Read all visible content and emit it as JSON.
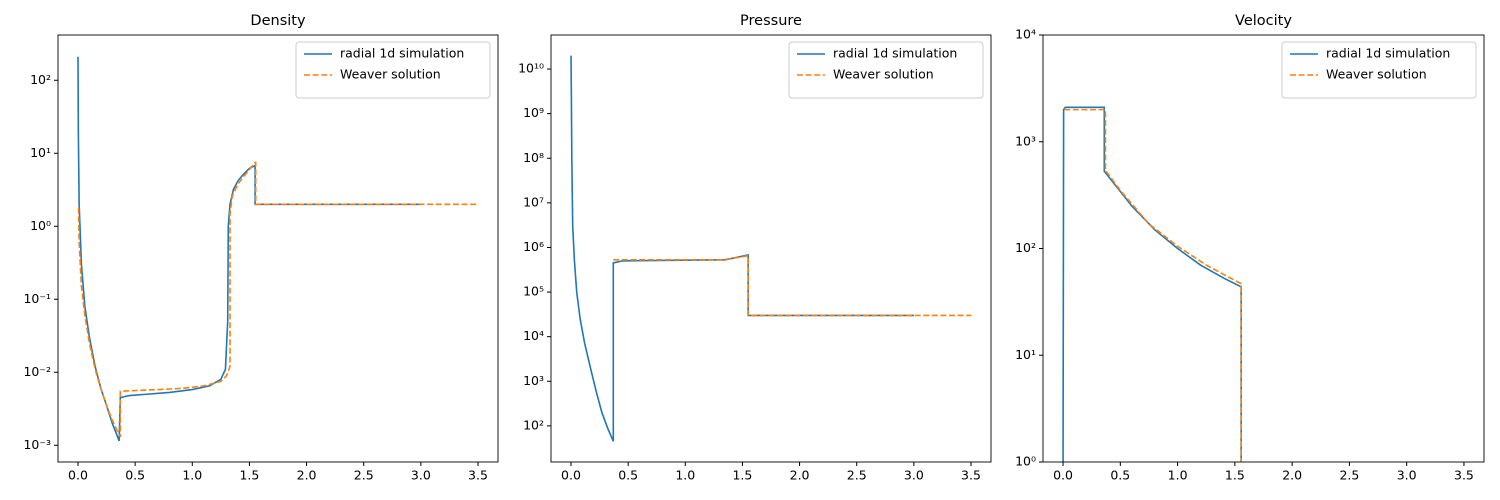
{
  "chart_data": [
    {
      "type": "line",
      "title": "Density",
      "yscale": "log",
      "legend": "upper right",
      "xlim": [
        -0.175,
        3.675
      ],
      "xticks": [
        {
          "value": 0,
          "label": "0.0"
        },
        0.5,
        {
          "value": 1,
          "label": "1.0"
        },
        1.5,
        {
          "value": 2,
          "label": "2.0"
        },
        2.5,
        {
          "value": 3,
          "label": "3.0"
        },
        3.5
      ],
      "ylim": [
        0.00059,
        417
      ],
      "yticks": [
        {
          "value": 0.001,
          "label": "10⁻³"
        },
        {
          "value": 0.01,
          "label": "10⁻²"
        },
        {
          "value": 0.1,
          "label": "10⁻¹"
        },
        {
          "value": 1,
          "label": "10⁰"
        },
        {
          "value": 10,
          "label": "10¹"
        },
        {
          "value": 100,
          "label": "10²"
        }
      ],
      "series": [
        {
          "name": "radial 1d simulation",
          "color": "#1f77b4",
          "linestyle": "solid",
          "x": [
            0,
            0.003,
            0.01,
            0.03,
            0.06,
            0.1,
            0.15,
            0.2,
            0.25,
            0.3,
            0.36,
            0.37,
            0.45,
            0.6,
            0.8,
            1.0,
            1.15,
            1.25,
            1.29,
            1.31,
            1.315,
            1.33,
            1.36,
            1.4,
            1.45,
            1.5,
            1.55,
            1.55,
            3.0
          ],
          "values": [
            210,
            20,
            2,
            0.3,
            0.08,
            0.03,
            0.012,
            0.006,
            0.0035,
            0.002,
            0.00115,
            0.0045,
            0.0048,
            0.005,
            0.0053,
            0.0058,
            0.0065,
            0.008,
            0.011,
            0.05,
            1.0,
            2.0,
            3.2,
            4.2,
            5.2,
            6.2,
            6.8,
            2.0,
            2.0
          ]
        },
        {
          "name": "Weaver solution",
          "color": "#ff7f0e",
          "linestyle": "dashed",
          "x": [
            0.005,
            0.01,
            0.03,
            0.06,
            0.1,
            0.15,
            0.2,
            0.25,
            0.3,
            0.35,
            0.37,
            0.37,
            0.6,
            0.9,
            1.1,
            1.25,
            1.3,
            1.33,
            1.33,
            1.35,
            1.4,
            1.45,
            1.5,
            1.55,
            1.555,
            1.555,
            3.5
          ],
          "values": [
            1.8,
            0.6,
            0.15,
            0.06,
            0.025,
            0.011,
            0.006,
            0.0035,
            0.0022,
            0.0015,
            0.0013,
            0.0055,
            0.0057,
            0.006,
            0.0065,
            0.0075,
            0.009,
            0.012,
            1.5,
            2.6,
            3.8,
            4.8,
            6.0,
            7.5,
            7.5,
            2.0,
            2.0
          ]
        }
      ]
    },
    {
      "type": "line",
      "title": "Pressure",
      "yscale": "log",
      "legend": "upper right",
      "xlim": [
        -0.175,
        3.675
      ],
      "xticks": [
        {
          "value": 0,
          "label": "0.0"
        },
        0.5,
        {
          "value": 1,
          "label": "1.0"
        },
        1.5,
        {
          "value": 2,
          "label": "2.0"
        },
        2.5,
        {
          "value": 3,
          "label": "3.0"
        },
        3.5
      ],
      "ylim": [
        15.5,
        58000000000
      ],
      "yticks": [
        {
          "value": 100,
          "label": "10²"
        },
        {
          "value": 1000,
          "label": "10³"
        },
        {
          "value": 10000,
          "label": "10⁴"
        },
        {
          "value": 100000,
          "label": "10⁵"
        },
        {
          "value": 1000000,
          "label": "10⁶"
        },
        {
          "value": 10000000,
          "label": "10⁷"
        },
        {
          "value": 100000000,
          "label": "10⁸"
        },
        {
          "value": 1000000000,
          "label": "10⁹"
        },
        {
          "value": 10000000000,
          "label": "10¹⁰"
        }
      ],
      "series": [
        {
          "name": "radial 1d simulation",
          "color": "#1f77b4",
          "linestyle": "solid",
          "x": [
            0,
            0.003,
            0.007,
            0.015,
            0.03,
            0.05,
            0.08,
            0.12,
            0.17,
            0.22,
            0.27,
            0.32,
            0.37,
            0.37,
            0.45,
            1.0,
            1.35,
            1.55,
            1.55,
            3.0
          ],
          "values": [
            20000000000,
            3000000000,
            100000000,
            3000000,
            500000,
            100000,
            25000,
            7000,
            2000,
            600,
            200,
            90,
            45,
            450000,
            500000,
            520000,
            530000,
            680000,
            30000,
            30000
          ]
        },
        {
          "name": "Weaver solution",
          "color": "#ff7f0e",
          "linestyle": "dashed",
          "x": [
            0.37,
            1.33,
            1.55,
            1.55,
            3.5
          ],
          "values": [
            530000,
            530000,
            650000,
            30000,
            30000
          ]
        }
      ]
    },
    {
      "type": "line",
      "title": "Velocity",
      "yscale": "log",
      "legend": "upper right",
      "xlim": [
        -0.175,
        3.675
      ],
      "xticks": [
        {
          "value": 0,
          "label": "0.0"
        },
        0.5,
        {
          "value": 1,
          "label": "1.0"
        },
        1.5,
        {
          "value": 2,
          "label": "2.0"
        },
        2.5,
        {
          "value": 3,
          "label": "3.0"
        },
        3.5
      ],
      "ylim": [
        1,
        10000
      ],
      "yticks": [
        {
          "value": 1,
          "label": "10⁰"
        },
        {
          "value": 10,
          "label": "10¹"
        },
        {
          "value": 100,
          "label": "10²"
        },
        {
          "value": 1000,
          "label": "10³"
        },
        {
          "value": 10000,
          "label": "10⁴"
        }
      ],
      "series": [
        {
          "name": "radial 1d simulation",
          "color": "#1f77b4",
          "linestyle": "solid",
          "x": [
            0,
            0.005,
            0.02,
            0.36,
            0.36,
            0.45,
            0.6,
            0.8,
            1.0,
            1.2,
            1.4,
            1.55,
            1.555,
            1.555
          ],
          "values": [
            1,
            2000,
            2100,
            2100,
            530,
            400,
            250,
            150,
            100,
            70,
            53,
            44,
            44,
            1
          ]
        },
        {
          "name": "Weaver solution",
          "color": "#ff7f0e",
          "linestyle": "dashed",
          "x": [
            0.01,
            0.37,
            0.37,
            0.5,
            0.75,
            1.0,
            1.25,
            1.55,
            1.555,
            1.555
          ],
          "values": [
            2000,
            2000,
            540,
            350,
            170,
            105,
            70,
            47,
            47,
            1
          ]
        }
      ]
    }
  ]
}
